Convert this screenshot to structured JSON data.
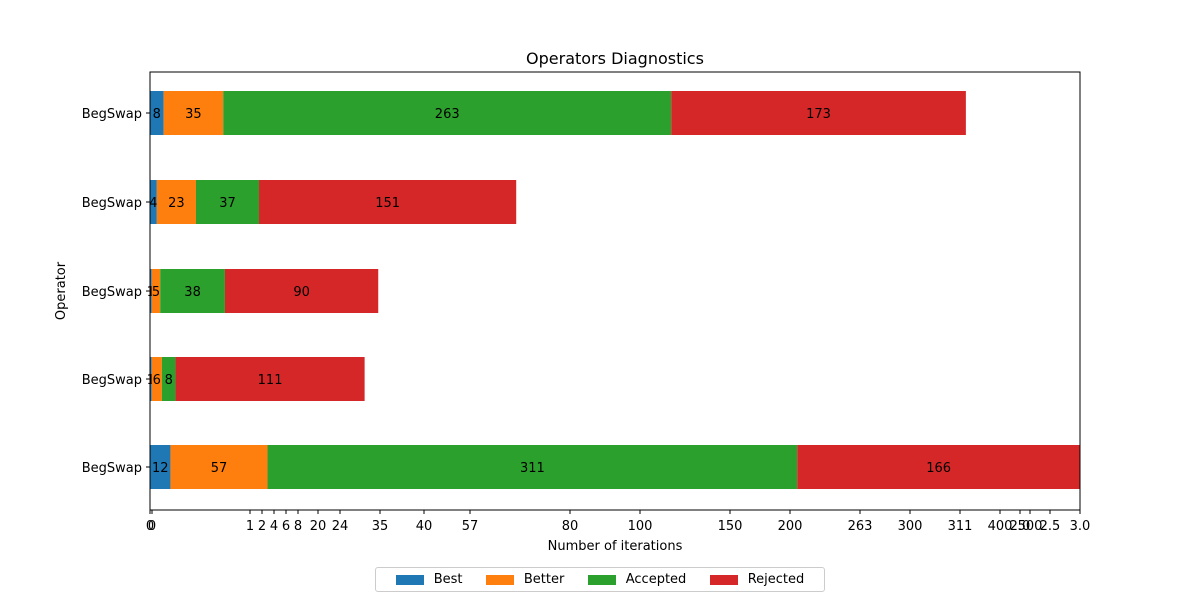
{
  "chart_data": {
    "type": "bar",
    "orientation": "horizontal",
    "stacked": true,
    "title": "Operators Diagnostics",
    "xlabel": "Number of iterations",
    "ylabel": "Operator",
    "categories": [
      "BegSwap",
      "BegSwap",
      "BegSwap",
      "BegSwap",
      "BegSwap"
    ],
    "series": [
      {
        "name": "Best",
        "color": "#1f77b4",
        "values": [
          8,
          4,
          1,
          1,
          12
        ]
      },
      {
        "name": "Better",
        "color": "#ff7f0e",
        "values": [
          35,
          23,
          5,
          6,
          57
        ]
      },
      {
        "name": "Accepted",
        "color": "#2ca02c",
        "values": [
          263,
          37,
          38,
          8,
          311
        ]
      },
      {
        "name": "Rejected",
        "color": "#d62728",
        "values": [
          173,
          151,
          90,
          111,
          166
        ]
      }
    ],
    "xlim": [
      0,
      546
    ],
    "x_tick_labels": [
      "0",
      "0",
      "1",
      "2",
      "4",
      "6",
      "8",
      "20",
      "24",
      "35",
      "40",
      "57",
      "80",
      "100",
      "150",
      "200",
      "263",
      "300",
      "311",
      "400",
      "500",
      "2.0",
      "2.5",
      "3.0"
    ],
    "grid": false,
    "legend_position": "bottom-center"
  }
}
